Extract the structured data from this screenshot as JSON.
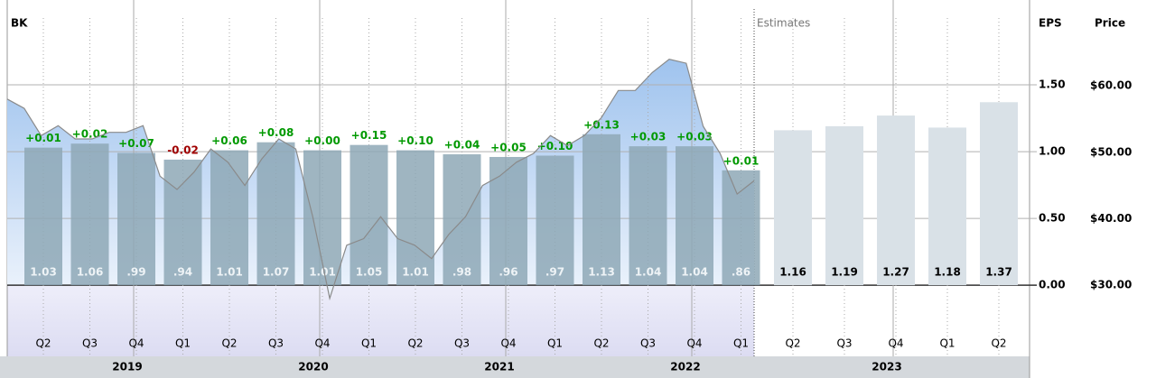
{
  "chart_data": {
    "type": "bar",
    "title": "BK",
    "eps_axis_label": "EPS",
    "price_axis_label": "Price",
    "estimates_label": "Estimates",
    "years": [
      "2019",
      "2020",
      "2021",
      "2022",
      "2023"
    ],
    "actual": {
      "categories": [
        "Q2",
        "Q3",
        "Q4",
        "Q1",
        "Q2",
        "Q3",
        "Q4",
        "Q1",
        "Q2",
        "Q3",
        "Q4",
        "Q1",
        "Q2",
        "Q3",
        "Q4",
        "Q1"
      ],
      "values": [
        1.03,
        1.06,
        0.99,
        0.94,
        1.01,
        1.07,
        1.01,
        1.05,
        1.01,
        0.98,
        0.96,
        0.97,
        1.13,
        1.04,
        1.04,
        0.86
      ],
      "value_labels": [
        "1.03",
        "1.06",
        ".99",
        ".94",
        "1.01",
        "1.07",
        "1.01",
        "1.05",
        "1.01",
        ".98",
        ".96",
        ".97",
        "1.13",
        "1.04",
        "1.04",
        ".86"
      ],
      "surprises": [
        0.01,
        0.02,
        0.07,
        -0.02,
        0.06,
        0.08,
        0.0,
        0.15,
        0.1,
        0.04,
        0.05,
        0.1,
        0.13,
        0.03,
        0.03,
        0.01
      ],
      "surprise_labels": [
        "+0.01",
        "+0.02",
        "+0.07",
        "-0.02",
        "+0.06",
        "+0.08",
        "+0.00",
        "+0.15",
        "+0.10",
        "+0.04",
        "+0.05",
        "+0.10",
        "+0.13",
        "+0.03",
        "+0.03",
        "+0.01"
      ],
      "color": "#8ea8b6"
    },
    "estimates": {
      "categories": [
        "Q2",
        "Q3",
        "Q4",
        "Q1",
        "Q2"
      ],
      "values": [
        1.16,
        1.19,
        1.27,
        1.18,
        1.37
      ],
      "color": "#d9e1e7"
    },
    "price": {
      "values": [
        58,
        56.6,
        52.5,
        54,
        52,
        52,
        53,
        53,
        54,
        46.4,
        44.4,
        47,
        50.5,
        48.5,
        45,
        49,
        52,
        50.5,
        40.3,
        28,
        36,
        37,
        40.3,
        37,
        36,
        34,
        37.6,
        40.3,
        45,
        46.4,
        48.5,
        49.8,
        52.5,
        51,
        52.5,
        55.2,
        59.3,
        59.3,
        62,
        64,
        63.4,
        53.9,
        49.8,
        43.7,
        45.7
      ],
      "color": "#8a8a8a"
    },
    "ylim": [
      -0.33,
      2.0
    ],
    "yticks": [
      {
        "value": 0,
        "label": "0.00"
      },
      {
        "value": 0.5,
        "label": "0.50"
      },
      {
        "value": 1,
        "label": "1.00"
      },
      {
        "value": 1.5,
        "label": "1.50"
      }
    ],
    "y2lim": [
      23.35,
      70.2
    ],
    "y2ticks": [
      {
        "value": 30,
        "label": "$30.00"
      },
      {
        "value": 40,
        "label": "$40.00"
      },
      {
        "value": 50,
        "label": "$50.00"
      },
      {
        "value": 60,
        "label": "$60.00"
      }
    ],
    "grid": true
  }
}
